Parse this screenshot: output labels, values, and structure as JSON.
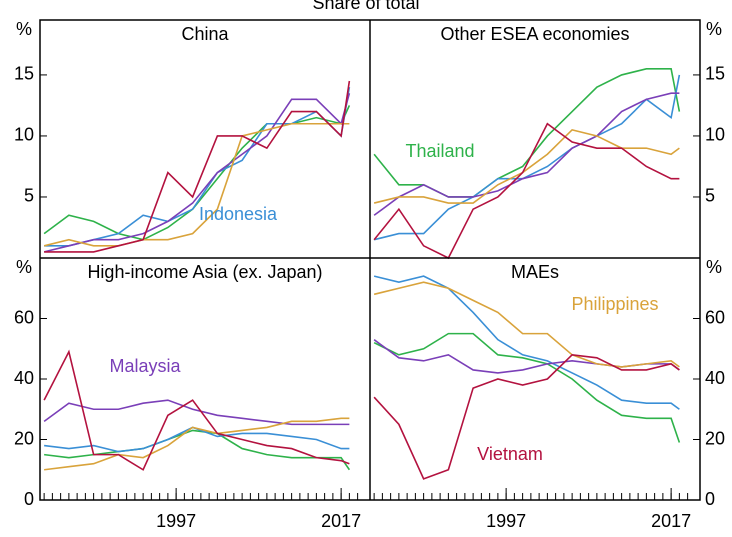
{
  "chart_data": {
    "type": "line",
    "title": "Share of total",
    "unit": "%",
    "x": [
      1981,
      1984,
      1987,
      1990,
      1993,
      1996,
      1999,
      2002,
      2005,
      2008,
      2011,
      2014,
      2017,
      2018
    ],
    "xlim": [
      1980.5,
      2020.5
    ],
    "xticks": [
      1997,
      2017
    ],
    "xminorticks": [
      1981,
      1982,
      1983,
      1984,
      1985,
      1986,
      1987,
      1988,
      1989,
      1990,
      1991,
      1992,
      1993,
      1994,
      1995,
      1996,
      1997,
      1998,
      1999,
      2000,
      2001,
      2002,
      2003,
      2004,
      2005,
      2006,
      2007,
      2008,
      2009,
      2010,
      2011,
      2012,
      2013,
      2014,
      2015,
      2016,
      2017,
      2018,
      2019
    ],
    "series": [
      {
        "name": "Thailand",
        "color": "#2eb24a"
      },
      {
        "name": "Indonesia",
        "color": "#3a8fd6"
      },
      {
        "name": "Malaysia",
        "color": "#7a3fb8"
      },
      {
        "name": "Philippines",
        "color": "#d9a33b"
      },
      {
        "name": "Vietnam",
        "color": "#b3123f"
      }
    ],
    "panels": [
      {
        "title": "China",
        "ylim": [
          0,
          19.5
        ],
        "yticks": [
          5,
          10,
          15
        ],
        "values": [
          [
            2,
            3.5,
            3,
            2,
            1.5,
            2.5,
            4,
            6.5,
            9,
            11,
            11,
            11.5,
            11,
            12.5
          ],
          [
            1,
            1,
            1.5,
            2,
            3.5,
            3,
            4,
            7,
            8,
            11,
            11,
            12,
            10,
            14
          ],
          [
            0.5,
            1,
            1.5,
            1.5,
            2,
            3,
            4.5,
            7,
            8.5,
            10,
            13,
            13,
            11,
            13.5
          ],
          [
            1,
            1.5,
            1,
            1,
            1.5,
            1.5,
            2,
            4,
            10,
            10.5,
            11,
            11,
            11,
            11
          ],
          [
            0.5,
            0.5,
            0.5,
            1,
            1.5,
            7,
            5,
            10,
            10,
            9,
            12,
            12,
            10,
            14.5
          ]
        ]
      },
      {
        "title": "Other ESEA economies",
        "ylim": [
          0,
          19.5
        ],
        "yticks": [
          5,
          10,
          15
        ],
        "values": [
          [
            8.5,
            6,
            6,
            5,
            5,
            6.5,
            7.5,
            10,
            12,
            14,
            15,
            15.5,
            15.5,
            12
          ],
          [
            1.5,
            2,
            2,
            4,
            5,
            6.5,
            6.5,
            7.5,
            9,
            10,
            11,
            13,
            11.5,
            15
          ],
          [
            3.5,
            5,
            6,
            5,
            5,
            5.5,
            6.5,
            7,
            9,
            10,
            12,
            13,
            13.5,
            13.5
          ],
          [
            4.5,
            5,
            5,
            4.5,
            4.5,
            6,
            7,
            8.5,
            10.5,
            10,
            9,
            9,
            8.5,
            9
          ],
          [
            1.5,
            4,
            1,
            0,
            4,
            5,
            7,
            11,
            9.5,
            9,
            9,
            7.5,
            6.5,
            6.5
          ]
        ]
      },
      {
        "title": "High-income Asia (ex. Japan)",
        "ylim": [
          0,
          80
        ],
        "yticks": [
          0,
          20,
          40,
          60
        ],
        "values": [
          [
            15,
            14,
            15,
            16,
            17,
            20,
            23,
            22,
            17,
            15,
            14,
            14,
            14,
            10
          ],
          [
            18,
            17,
            18,
            16,
            17,
            20,
            24,
            21,
            22,
            22,
            21,
            20,
            17,
            17
          ],
          [
            26,
            32,
            30,
            30,
            32,
            33,
            30,
            28,
            27,
            26,
            25,
            25,
            25,
            25
          ],
          [
            10,
            11,
            12,
            15,
            14,
            18,
            24,
            22,
            23,
            24,
            26,
            26,
            27,
            27
          ],
          [
            33,
            49,
            15,
            15,
            10,
            28,
            33,
            22,
            20,
            18,
            17,
            14,
            13,
            12
          ]
        ]
      },
      {
        "title": "MAEs",
        "ylim": [
          0,
          80
        ],
        "yticks": [
          0,
          20,
          40,
          60
        ],
        "values": [
          [
            52,
            48,
            50,
            55,
            55,
            48,
            47,
            45,
            40,
            33,
            28,
            27,
            27,
            19
          ],
          [
            74,
            72,
            74,
            70,
            62,
            53,
            48,
            46,
            42,
            38,
            33,
            32,
            32,
            30
          ],
          [
            53,
            47,
            46,
            48,
            43,
            42,
            43,
            45,
            46,
            45,
            44,
            45,
            45,
            43
          ],
          [
            68,
            70,
            72,
            70,
            66,
            62,
            55,
            55,
            48,
            45,
            44,
            45,
            46,
            44
          ],
          [
            34,
            25,
            7,
            10,
            37,
            40,
            38,
            40,
            48,
            47,
            43,
            43,
            45,
            43
          ]
        ]
      }
    ]
  }
}
